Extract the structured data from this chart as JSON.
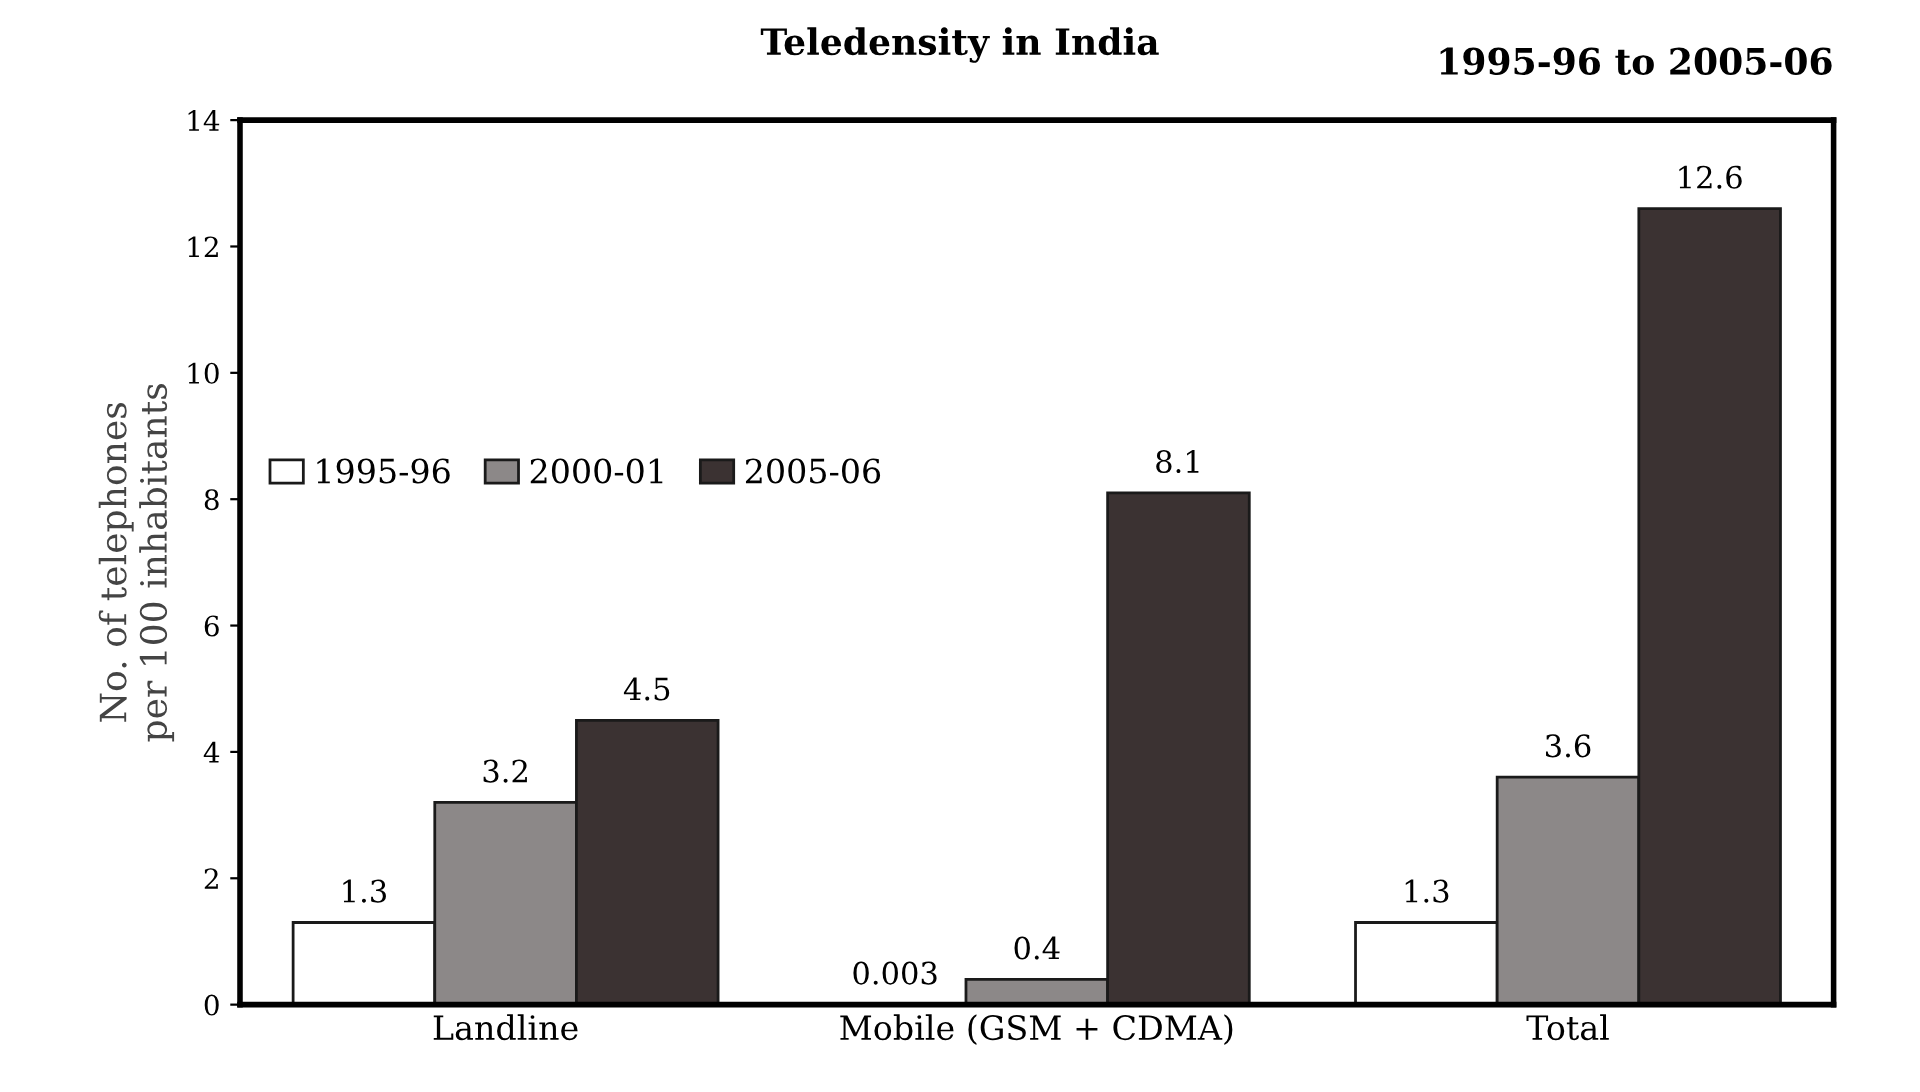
{
  "chart_data": {
    "type": "bar",
    "title": "Teledensity in India",
    "subtitle": "1995-96 to 2005-06",
    "ylabel": "No. of telephones\nper 100 inhabitants",
    "categories": [
      "Landline",
      "Mobile (GSM + CDMA)",
      "Total"
    ],
    "series": [
      {
        "name": "1995-96",
        "color": "#ffffff",
        "values": [
          1.3,
          0.003,
          1.3
        ]
      },
      {
        "name": "2000-01",
        "color": "#8c8888",
        "values": [
          3.2,
          0.4,
          3.6
        ]
      },
      {
        "name": "2005-06",
        "color": "#3b3232",
        "values": [
          4.5,
          8.1,
          12.6
        ]
      }
    ],
    "ylim": [
      0,
      14
    ],
    "yticks": [
      0,
      2,
      4,
      6,
      8,
      10,
      12,
      14
    ],
    "data_labels": true,
    "legend": "center left",
    "grid": false
  }
}
